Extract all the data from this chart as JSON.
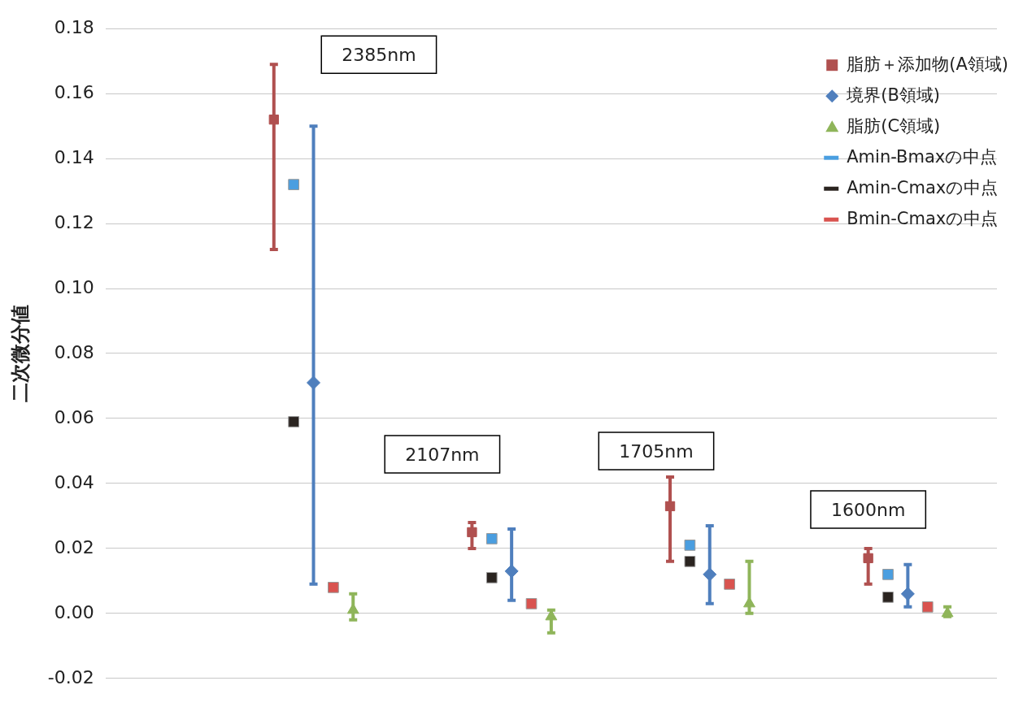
{
  "chart_data": {
    "type": "scatter",
    "ylabel": "二次微分値",
    "categories": [
      null,
      null,
      null,
      null,
      null,
      null,
      null,
      null,
      null,
      null,
      null,
      null,
      null,
      null,
      null,
      null,
      null,
      null,
      null,
      null,
      null,
      null,
      null,
      null,
      null,
      null,
      null,
      null,
      null,
      null,
      null,
      null,
      null,
      null,
      null,
      null,
      null,
      null,
      null,
      null,
      null,
      null,
      null,
      null,
      null
    ],
    "ylim": [
      -0.02,
      0.18
    ],
    "yticks": [
      -0.02,
      {
        "value": 0,
        "label": "0.00"
      },
      0.02,
      0.04,
      0.06,
      0.08,
      {
        "value": 0.1,
        "label": "0.10"
      },
      0.12,
      0.14,
      0.16,
      0.18
    ],
    "grid": "y",
    "tick_labels": "y",
    "legend": "top right",
    "annotations": [
      "2385nm",
      "2107nm",
      "1705nm",
      "1600nm"
    ],
    "series": [
      {
        "name": "脂肪＋添加物(A領域)",
        "color": "#b0504f",
        "marker": "square",
        "values": [
          null,
          null,
          null,
          null,
          null,
          null,
          null,
          null,
          0.152,
          null,
          null,
          null,
          null,
          null,
          null,
          null,
          null,
          null,
          0.025,
          null,
          null,
          null,
          null,
          null,
          null,
          null,
          null,
          null,
          0.033,
          null,
          null,
          null,
          null,
          null,
          null,
          null,
          null,
          null,
          0.017,
          null,
          null,
          null,
          null,
          null,
          null
        ],
        "errors": [
          null,
          null,
          null,
          null,
          null,
          null,
          null,
          null,
          [
            0.112,
            0.169
          ],
          null,
          null,
          null,
          null,
          null,
          null,
          null,
          null,
          null,
          [
            0.02,
            0.028
          ],
          null,
          null,
          null,
          null,
          null,
          null,
          null,
          null,
          null,
          [
            0.016,
            0.042
          ],
          null,
          null,
          null,
          null,
          null,
          null,
          null,
          null,
          null,
          [
            0.009,
            0.02
          ],
          null,
          null,
          null,
          null,
          null,
          null
        ]
      },
      {
        "name": "境界(B領域)",
        "color": "#4f7fbd",
        "marker": "diamond",
        "values": [
          null,
          null,
          null,
          null,
          null,
          null,
          null,
          null,
          null,
          null,
          0.071,
          null,
          null,
          null,
          null,
          null,
          null,
          null,
          null,
          null,
          0.013,
          null,
          null,
          null,
          null,
          null,
          null,
          null,
          null,
          null,
          0.012,
          null,
          null,
          null,
          null,
          null,
          null,
          null,
          null,
          null,
          0.006,
          null,
          null,
          null,
          null
        ],
        "errors": [
          null,
          null,
          null,
          null,
          null,
          null,
          null,
          null,
          null,
          null,
          [
            0.009,
            0.15
          ],
          null,
          null,
          null,
          null,
          null,
          null,
          null,
          null,
          null,
          [
            0.004,
            0.026
          ],
          null,
          null,
          null,
          null,
          null,
          null,
          null,
          null,
          null,
          [
            0.003,
            0.027
          ],
          null,
          null,
          null,
          null,
          null,
          null,
          null,
          null,
          null,
          [
            0.002,
            0.015
          ],
          null,
          null,
          null,
          null
        ]
      },
      {
        "name": "脂肪(C領域)",
        "color": "#8fb55a",
        "marker": "triangle",
        "values": [
          null,
          null,
          null,
          null,
          null,
          null,
          null,
          null,
          null,
          null,
          null,
          null,
          0.001,
          null,
          null,
          null,
          null,
          null,
          null,
          null,
          null,
          null,
          -0.001,
          null,
          null,
          null,
          null,
          null,
          null,
          null,
          null,
          null,
          0.003,
          null,
          null,
          null,
          null,
          null,
          null,
          null,
          null,
          null,
          0.0,
          null,
          null
        ],
        "errors": [
          null,
          null,
          null,
          null,
          null,
          null,
          null,
          null,
          null,
          null,
          null,
          null,
          [
            -0.002,
            0.006
          ],
          null,
          null,
          null,
          null,
          null,
          null,
          null,
          null,
          null,
          [
            -0.006,
            0.001
          ],
          null,
          null,
          null,
          null,
          null,
          null,
          null,
          null,
          null,
          [
            0.0,
            0.016
          ],
          null,
          null,
          null,
          null,
          null,
          null,
          null,
          null,
          null,
          [
            -0.001,
            0.002
          ],
          null,
          null
        ]
      },
      {
        "name": "Amin-Bmaxの中点",
        "color": "#4a9ee0",
        "values": [
          null,
          null,
          null,
          null,
          null,
          null,
          null,
          null,
          null,
          0.132,
          null,
          null,
          null,
          null,
          null,
          null,
          null,
          null,
          null,
          0.023,
          null,
          null,
          null,
          null,
          null,
          null,
          null,
          null,
          null,
          0.021,
          null,
          null,
          null,
          null,
          null,
          null,
          null,
          null,
          null,
          0.012,
          null,
          null,
          null,
          null,
          null
        ]
      },
      {
        "name": "Amin-Cmaxの中点",
        "color": "#2a2420",
        "values": [
          null,
          null,
          null,
          null,
          null,
          null,
          null,
          null,
          null,
          0.059,
          null,
          null,
          null,
          null,
          null,
          null,
          null,
          null,
          null,
          0.011,
          null,
          null,
          null,
          null,
          null,
          null,
          null,
          null,
          null,
          0.016,
          null,
          null,
          null,
          null,
          null,
          null,
          null,
          null,
          null,
          0.005,
          null,
          null,
          null,
          null,
          null
        ]
      },
      {
        "name": "Bmin-Cmaxの中点",
        "color": "#d9534f",
        "values": [
          null,
          null,
          null,
          null,
          null,
          null,
          null,
          null,
          null,
          null,
          null,
          0.008,
          null,
          null,
          null,
          null,
          null,
          null,
          null,
          null,
          null,
          0.003,
          null,
          null,
          null,
          null,
          null,
          null,
          null,
          null,
          null,
          0.009,
          null,
          null,
          null,
          null,
          null,
          null,
          null,
          null,
          null,
          0.002,
          null,
          null,
          null
        ]
      }
    ]
  }
}
